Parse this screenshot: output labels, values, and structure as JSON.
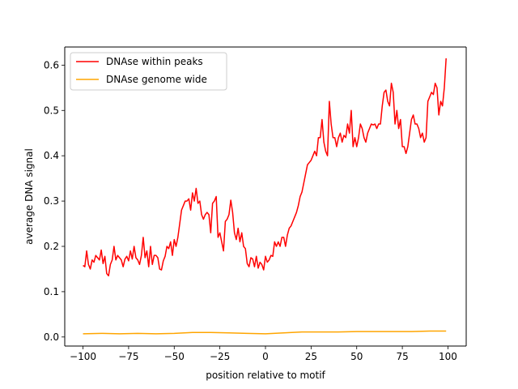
{
  "chart_data": {
    "type": "line",
    "title": "",
    "xlabel": "position relative to motif",
    "ylabel": "average DNA signal",
    "xlim": [
      -110,
      110
    ],
    "ylim": [
      -0.02,
      0.64
    ],
    "xticks": [
      -100,
      -75,
      -50,
      -25,
      0,
      25,
      50,
      75,
      100
    ],
    "xtick_labels": [
      "−100",
      "−75",
      "−50",
      "−25",
      "0",
      "25",
      "50",
      "75",
      "100"
    ],
    "yticks": [
      0.0,
      0.1,
      0.2,
      0.3,
      0.4,
      0.5,
      0.6
    ],
    "ytick_labels": [
      "0.0",
      "0.1",
      "0.2",
      "0.3",
      "0.4",
      "0.5",
      "0.6"
    ],
    "grid": false,
    "legend_position": "upper-left",
    "series": [
      {
        "name": "DNAse within peaks",
        "color": "#ff0000",
        "points": [
          [
            -100,
            0.158
          ],
          [
            -99,
            0.155
          ],
          [
            -98,
            0.19
          ],
          [
            -97,
            0.16
          ],
          [
            -96,
            0.15
          ],
          [
            -95,
            0.17
          ],
          [
            -94,
            0.165
          ],
          [
            -93,
            0.18
          ],
          [
            -92,
            0.175
          ],
          [
            -91,
            0.17
          ],
          [
            -90,
            0.192
          ],
          [
            -89,
            0.162
          ],
          [
            -88,
            0.178
          ],
          [
            -87,
            0.14
          ],
          [
            -86,
            0.135
          ],
          [
            -85,
            0.16
          ],
          [
            -84,
            0.17
          ],
          [
            -83,
            0.2
          ],
          [
            -82,
            0.17
          ],
          [
            -81,
            0.18
          ],
          [
            -80,
            0.175
          ],
          [
            -79,
            0.17
          ],
          [
            -78,
            0.155
          ],
          [
            -77,
            0.172
          ],
          [
            -76,
            0.178
          ],
          [
            -75,
            0.168
          ],
          [
            -74,
            0.19
          ],
          [
            -73,
            0.172
          ],
          [
            -72,
            0.2
          ],
          [
            -71,
            0.175
          ],
          [
            -70,
            0.17
          ],
          [
            -69,
            0.16
          ],
          [
            -68,
            0.18
          ],
          [
            -67,
            0.22
          ],
          [
            -66,
            0.175
          ],
          [
            -65,
            0.19
          ],
          [
            -64,
            0.155
          ],
          [
            -63,
            0.2
          ],
          [
            -62,
            0.16
          ],
          [
            -61,
            0.18
          ],
          [
            -60,
            0.18
          ],
          [
            -59,
            0.175
          ],
          [
            -58,
            0.15
          ],
          [
            -57,
            0.148
          ],
          [
            -56,
            0.168
          ],
          [
            -55,
            0.178
          ],
          [
            -54,
            0.2
          ],
          [
            -53,
            0.195
          ],
          [
            -52,
            0.21
          ],
          [
            -51,
            0.18
          ],
          [
            -50,
            0.215
          ],
          [
            -49,
            0.2
          ],
          [
            -48,
            0.22
          ],
          [
            -47,
            0.25
          ],
          [
            -46,
            0.28
          ],
          [
            -45,
            0.29
          ],
          [
            -44,
            0.3
          ],
          [
            -43,
            0.3
          ],
          [
            -42,
            0.305
          ],
          [
            -41,
            0.28
          ],
          [
            -40,
            0.318
          ],
          [
            -39,
            0.3
          ],
          [
            -38,
            0.328
          ],
          [
            -37,
            0.295
          ],
          [
            -36,
            0.3
          ],
          [
            -35,
            0.27
          ],
          [
            -34,
            0.26
          ],
          [
            -33,
            0.27
          ],
          [
            -32,
            0.275
          ],
          [
            -31,
            0.27
          ],
          [
            -30,
            0.23
          ],
          [
            -29,
            0.295
          ],
          [
            -28,
            0.3
          ],
          [
            -27,
            0.31
          ],
          [
            -26,
            0.22
          ],
          [
            -25,
            0.23
          ],
          [
            -24,
            0.21
          ],
          [
            -23,
            0.19
          ],
          [
            -22,
            0.255
          ],
          [
            -21,
            0.26
          ],
          [
            -20,
            0.27
          ],
          [
            -19,
            0.302
          ],
          [
            -18,
            0.275
          ],
          [
            -17,
            0.23
          ],
          [
            -16,
            0.215
          ],
          [
            -15,
            0.24
          ],
          [
            -14,
            0.21
          ],
          [
            -13,
            0.23
          ],
          [
            -12,
            0.2
          ],
          [
            -11,
            0.195
          ],
          [
            -10,
            0.162
          ],
          [
            -9,
            0.155
          ],
          [
            -8,
            0.175
          ],
          [
            -7,
            0.172
          ],
          [
            -6,
            0.155
          ],
          [
            -5,
            0.178
          ],
          [
            -4,
            0.152
          ],
          [
            -3,
            0.165
          ],
          [
            -2,
            0.16
          ],
          [
            -1,
            0.148
          ],
          [
            0,
            0.178
          ],
          [
            1,
            0.165
          ],
          [
            2,
            0.17
          ],
          [
            3,
            0.18
          ],
          [
            4,
            0.178
          ],
          [
            5,
            0.21
          ],
          [
            6,
            0.2
          ],
          [
            7,
            0.21
          ],
          [
            8,
            0.2
          ],
          [
            9,
            0.22
          ],
          [
            10,
            0.22
          ],
          [
            11,
            0.2
          ],
          [
            12,
            0.225
          ],
          [
            13,
            0.24
          ],
          [
            14,
            0.245
          ],
          [
            15,
            0.255
          ],
          [
            16,
            0.265
          ],
          [
            17,
            0.275
          ],
          [
            18,
            0.29
          ],
          [
            19,
            0.31
          ],
          [
            20,
            0.32
          ],
          [
            21,
            0.34
          ],
          [
            22,
            0.36
          ],
          [
            23,
            0.38
          ],
          [
            24,
            0.385
          ],
          [
            25,
            0.39
          ],
          [
            26,
            0.4
          ],
          [
            27,
            0.41
          ],
          [
            28,
            0.4
          ],
          [
            29,
            0.44
          ],
          [
            30,
            0.44
          ],
          [
            31,
            0.48
          ],
          [
            32,
            0.43
          ],
          [
            33,
            0.41
          ],
          [
            34,
            0.4
          ],
          [
            35,
            0.52
          ],
          [
            36,
            0.47
          ],
          [
            37,
            0.44
          ],
          [
            38,
            0.44
          ],
          [
            39,
            0.42
          ],
          [
            40,
            0.44
          ],
          [
            41,
            0.45
          ],
          [
            42,
            0.43
          ],
          [
            43,
            0.445
          ],
          [
            44,
            0.44
          ],
          [
            45,
            0.47
          ],
          [
            46,
            0.45
          ],
          [
            47,
            0.5
          ],
          [
            48,
            0.42
          ],
          [
            49,
            0.44
          ],
          [
            50,
            0.42
          ],
          [
            51,
            0.44
          ],
          [
            52,
            0.47
          ],
          [
            53,
            0.46
          ],
          [
            54,
            0.44
          ],
          [
            55,
            0.43
          ],
          [
            56,
            0.45
          ],
          [
            57,
            0.46
          ],
          [
            58,
            0.47
          ],
          [
            59,
            0.468
          ],
          [
            60,
            0.47
          ],
          [
            61,
            0.46
          ],
          [
            62,
            0.47
          ],
          [
            63,
            0.47
          ],
          [
            64,
            0.51
          ],
          [
            65,
            0.54
          ],
          [
            66,
            0.545
          ],
          [
            67,
            0.52
          ],
          [
            68,
            0.51
          ],
          [
            69,
            0.56
          ],
          [
            70,
            0.54
          ],
          [
            71,
            0.47
          ],
          [
            72,
            0.5
          ],
          [
            73,
            0.46
          ],
          [
            74,
            0.48
          ],
          [
            75,
            0.42
          ],
          [
            76,
            0.42
          ],
          [
            77,
            0.405
          ],
          [
            78,
            0.42
          ],
          [
            79,
            0.45
          ],
          [
            80,
            0.48
          ],
          [
            81,
            0.49
          ],
          [
            82,
            0.47
          ],
          [
            83,
            0.47
          ],
          [
            84,
            0.46
          ],
          [
            85,
            0.44
          ],
          [
            86,
            0.45
          ],
          [
            87,
            0.43
          ],
          [
            88,
            0.44
          ],
          [
            89,
            0.52
          ],
          [
            90,
            0.53
          ],
          [
            91,
            0.54
          ],
          [
            92,
            0.535
          ],
          [
            93,
            0.56
          ],
          [
            94,
            0.55
          ],
          [
            95,
            0.49
          ],
          [
            96,
            0.52
          ],
          [
            97,
            0.51
          ],
          [
            98,
            0.55
          ],
          [
            99,
            0.615
          ]
        ]
      },
      {
        "name": "DNAse genome wide",
        "color": "#ffa500",
        "points": [
          [
            -100,
            0.007
          ],
          [
            -90,
            0.008
          ],
          [
            -80,
            0.007
          ],
          [
            -70,
            0.008
          ],
          [
            -60,
            0.007
          ],
          [
            -50,
            0.008
          ],
          [
            -40,
            0.01
          ],
          [
            -30,
            0.01
          ],
          [
            -20,
            0.009
          ],
          [
            -10,
            0.008
          ],
          [
            0,
            0.007
          ],
          [
            10,
            0.009
          ],
          [
            20,
            0.011
          ],
          [
            30,
            0.011
          ],
          [
            40,
            0.011
          ],
          [
            50,
            0.012
          ],
          [
            60,
            0.012
          ],
          [
            70,
            0.012
          ],
          [
            80,
            0.012
          ],
          [
            90,
            0.013
          ],
          [
            99,
            0.013
          ]
        ]
      }
    ]
  }
}
